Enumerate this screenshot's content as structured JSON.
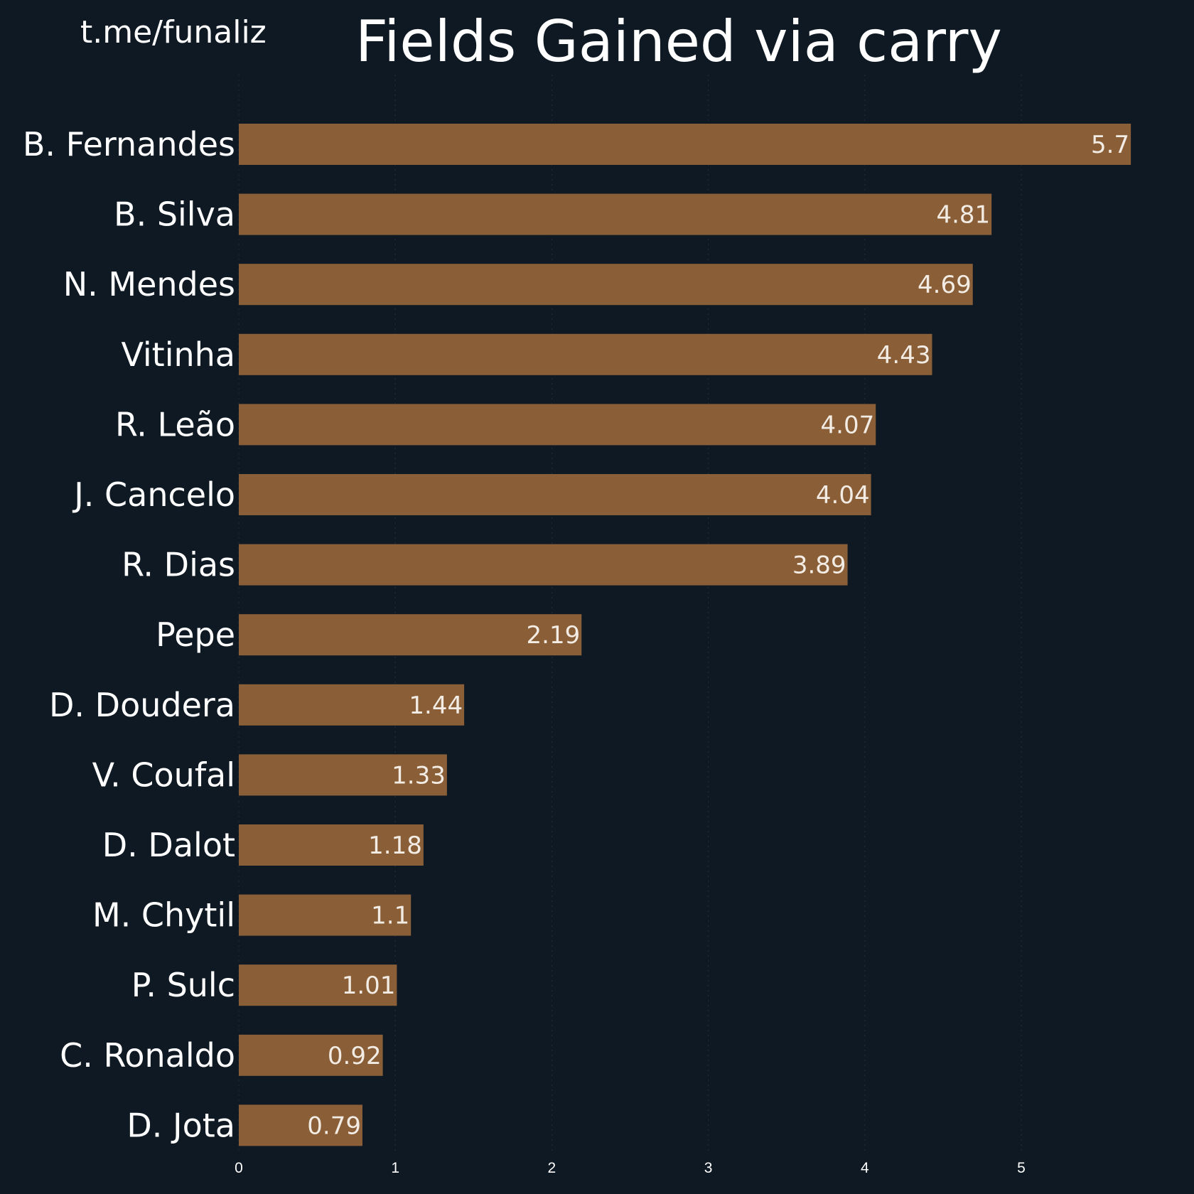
{
  "watermark": "t.me/funaliz",
  "colors": {
    "background": "#0f1923",
    "bar": "#8a5f38",
    "text": "#ffffff",
    "grid": "#1f2b36"
  },
  "chart_data": {
    "type": "bar",
    "orientation": "horizontal",
    "title": "Fields Gained via carry",
    "xlabel": "",
    "ylabel": "",
    "categories": [
      "B. Fernandes",
      "B. Silva",
      "N. Mendes",
      "Vitinha",
      "R. Leão",
      "J. Cancelo",
      "R. Dias",
      "Pepe",
      "D. Doudera",
      "V. Coufal",
      "D. Dalot",
      "M. Chytil",
      "P. Sulc",
      "C. Ronaldo",
      "D. Jota"
    ],
    "values": [
      5.7,
      4.81,
      4.69,
      4.43,
      4.07,
      4.04,
      3.89,
      2.19,
      1.44,
      1.33,
      1.18,
      1.1,
      1.01,
      0.92,
      0.79
    ],
    "data_labels": [
      "5.7",
      "4.81",
      "4.69",
      "4.43",
      "4.07",
      "4.04",
      "3.89",
      "2.19",
      "1.44",
      "1.33",
      "1.18",
      "1.1",
      "1.01",
      "0.92",
      "0.79"
    ],
    "xticks": [
      "0",
      "1",
      "2",
      "3",
      "4",
      "5"
    ],
    "xlim": [
      0,
      5.9
    ],
    "grid": "vertical dotted",
    "legend": "none"
  }
}
